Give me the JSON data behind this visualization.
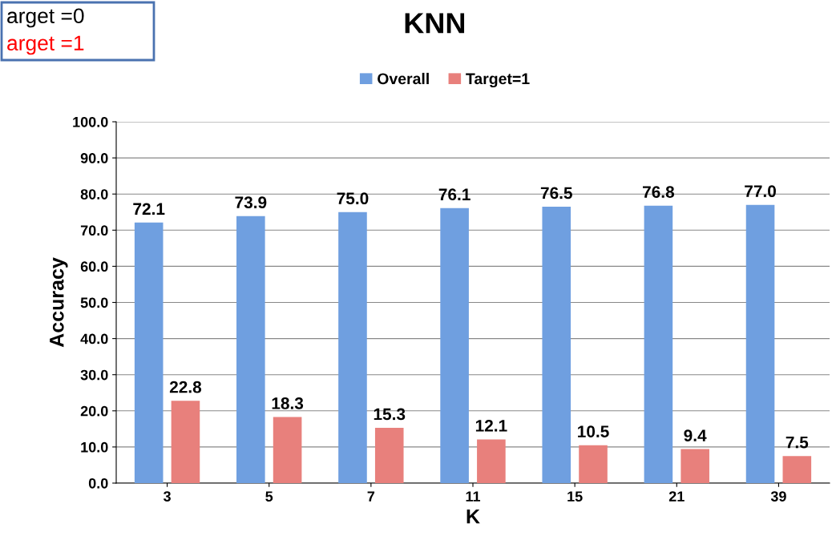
{
  "chart_data": {
    "type": "bar",
    "title": "KNN",
    "xlabel": "K",
    "ylabel": "Accuracy",
    "categories": [
      "3",
      "5",
      "7",
      "11",
      "15",
      "21",
      "39"
    ],
    "series": [
      {
        "name": "Overall",
        "color": "#6f9fe0",
        "values": [
          72.1,
          73.9,
          75.0,
          76.1,
          76.5,
          76.8,
          77.0
        ],
        "value_labels": [
          "72.1",
          "73.9",
          "75.0",
          "76.1",
          "76.5",
          "76.8",
          "77.0"
        ]
      },
      {
        "name": "Target=1",
        "color": "#e8807c",
        "values": [
          22.8,
          18.3,
          15.3,
          12.1,
          10.5,
          9.4,
          7.5
        ],
        "value_labels": [
          "22.8",
          "18.3",
          "15.3",
          "12.1",
          "10.5",
          "9.4",
          "7.5"
        ]
      }
    ],
    "ylim": [
      0,
      100
    ],
    "yticks": [
      {
        "value": 0,
        "label": "0.0"
      },
      {
        "value": 10,
        "label": "10.0"
      },
      {
        "value": 20,
        "label": "20.0"
      },
      {
        "value": 30,
        "label": "30.0"
      },
      {
        "value": 40,
        "label": "40.0"
      },
      {
        "value": 50,
        "label": "50.0"
      },
      {
        "value": 60,
        "label": "60.0"
      },
      {
        "value": 70,
        "label": "70.0"
      },
      {
        "value": 80,
        "label": "80.0"
      },
      {
        "value": 90,
        "label": "90.0"
      },
      {
        "value": 100,
        "label": "100.0"
      }
    ],
    "grid": "y",
    "legend": "top",
    "annotations": [
      "arget =0",
      "arget =1"
    ]
  }
}
